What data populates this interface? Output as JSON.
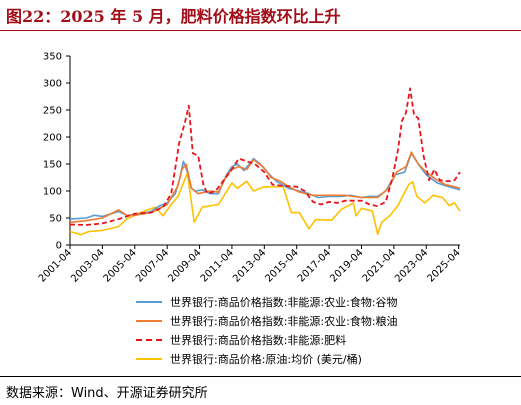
{
  "title": "图22：2025 年 5 月，肥料价格指数环比上升",
  "source": "数据来源：Wind、开源证券研究所",
  "chart_data": {
    "type": "line",
    "title": "图22：2025 年 5 月，肥料价格指数环比上升",
    "xlabel": "",
    "ylabel": "",
    "ylim": [
      0,
      350
    ],
    "yticks": [
      0,
      50,
      100,
      150,
      200,
      250,
      300,
      350
    ],
    "xticks": [
      "2001-04",
      "2003-04",
      "2005-04",
      "2007-04",
      "2009-04",
      "2011-04",
      "2013-04",
      "2015-04",
      "2017-04",
      "2019-04",
      "2021-04",
      "2023-04",
      "2025-04"
    ],
    "x_range": [
      "2001-04",
      "2025-05"
    ],
    "grid": false,
    "legend_position": "bottom",
    "series": [
      {
        "name": "世界银行:商品价格指数:非能源:农业:食物:谷物",
        "color": "#5b9bd5",
        "dash": "solid",
        "points": [
          [
            "2001-04",
            48
          ],
          [
            "2002-04",
            50
          ],
          [
            "2002-10",
            55
          ],
          [
            "2003-04",
            53
          ],
          [
            "2004-04",
            62
          ],
          [
            "2004-10",
            55
          ],
          [
            "2005-04",
            56
          ],
          [
            "2006-04",
            62
          ],
          [
            "2006-10",
            72
          ],
          [
            "2007-04",
            78
          ],
          [
            "2007-10",
            95
          ],
          [
            "2008-01",
            120
          ],
          [
            "2008-04",
            155
          ],
          [
            "2008-07",
            135
          ],
          [
            "2008-10",
            105
          ],
          [
            "2009-01",
            100
          ],
          [
            "2009-06",
            102
          ],
          [
            "2009-12",
            95
          ],
          [
            "2010-06",
            95
          ],
          [
            "2010-12",
            130
          ],
          [
            "2011-04",
            145
          ],
          [
            "2011-08",
            150
          ],
          [
            "2012-01",
            138
          ],
          [
            "2012-08",
            160
          ],
          [
            "2013-01",
            150
          ],
          [
            "2013-08",
            130
          ],
          [
            "2014-01",
            118
          ],
          [
            "2014-10",
            105
          ],
          [
            "2015-06",
            100
          ],
          [
            "2016-01",
            95
          ],
          [
            "2016-08",
            88
          ],
          [
            "2017-04",
            90
          ],
          [
            "2018-01",
            90
          ],
          [
            "2018-08",
            92
          ],
          [
            "2019-04",
            88
          ],
          [
            "2019-10",
            90
          ],
          [
            "2020-04",
            90
          ],
          [
            "2020-10",
            100
          ],
          [
            "2021-05",
            130
          ],
          [
            "2021-12",
            135
          ],
          [
            "2022-05",
            170
          ],
          [
            "2022-10",
            150
          ],
          [
            "2023-04",
            130
          ],
          [
            "2023-12",
            115
          ],
          [
            "2024-06",
            110
          ],
          [
            "2025-01",
            105
          ],
          [
            "2025-05",
            102
          ]
        ]
      },
      {
        "name": "世界银行:商品价格指数:非能源:农业:食物:粮油",
        "color": "#ed7d31",
        "dash": "solid",
        "points": [
          [
            "2001-04",
            42
          ],
          [
            "2002-04",
            45
          ],
          [
            "2003-04",
            50
          ],
          [
            "2004-04",
            65
          ],
          [
            "2004-10",
            55
          ],
          [
            "2005-04",
            55
          ],
          [
            "2006-04",
            60
          ],
          [
            "2007-04",
            75
          ],
          [
            "2007-12",
            110
          ],
          [
            "2008-03",
            140
          ],
          [
            "2008-06",
            150
          ],
          [
            "2008-10",
            105
          ],
          [
            "2009-03",
            95
          ],
          [
            "2009-12",
            100
          ],
          [
            "2010-06",
            98
          ],
          [
            "2010-12",
            128
          ],
          [
            "2011-04",
            140
          ],
          [
            "2011-09",
            145
          ],
          [
            "2012-03",
            140
          ],
          [
            "2012-08",
            158
          ],
          [
            "2013-03",
            145
          ],
          [
            "2013-09",
            125
          ],
          [
            "2014-04",
            118
          ],
          [
            "2014-10",
            108
          ],
          [
            "2015-06",
            98
          ],
          [
            "2016-04",
            92
          ],
          [
            "2017-04",
            92
          ],
          [
            "2018-04",
            92
          ],
          [
            "2019-04",
            88
          ],
          [
            "2020-04",
            88
          ],
          [
            "2020-12",
            105
          ],
          [
            "2021-06",
            135
          ],
          [
            "2022-01",
            145
          ],
          [
            "2022-05",
            172
          ],
          [
            "2022-10",
            150
          ],
          [
            "2023-04",
            135
          ],
          [
            "2023-12",
            120
          ],
          [
            "2024-06",
            112
          ],
          [
            "2025-01",
            108
          ],
          [
            "2025-05",
            105
          ]
        ]
      },
      {
        "name": "世界银行:商品价格指数:非能源:肥料",
        "color": "#e8141c",
        "dash": "dashed",
        "points": [
          [
            "2001-04",
            38
          ],
          [
            "2002-04",
            37
          ],
          [
            "2003-04",
            40
          ],
          [
            "2004-04",
            48
          ],
          [
            "2005-04",
            58
          ],
          [
            "2006-04",
            60
          ],
          [
            "2007-01",
            70
          ],
          [
            "2007-07",
            95
          ],
          [
            "2008-01",
            190
          ],
          [
            "2008-05",
            225
          ],
          [
            "2008-08",
            258
          ],
          [
            "2008-11",
            170
          ],
          [
            "2009-03",
            165
          ],
          [
            "2009-07",
            110
          ],
          [
            "2009-10",
            95
          ],
          [
            "2010-04",
            100
          ],
          [
            "2010-10",
            120
          ],
          [
            "2011-04",
            140
          ],
          [
            "2011-09",
            160
          ],
          [
            "2012-03",
            155
          ],
          [
            "2012-09",
            150
          ],
          [
            "2013-04",
            135
          ],
          [
            "2013-10",
            112
          ],
          [
            "2014-04",
            110
          ],
          [
            "2015-04",
            108
          ],
          [
            "2015-10",
            100
          ],
          [
            "2016-04",
            80
          ],
          [
            "2016-10",
            75
          ],
          [
            "2017-04",
            80
          ],
          [
            "2017-10",
            78
          ],
          [
            "2018-04",
            82
          ],
          [
            "2019-04",
            82
          ],
          [
            "2019-10",
            75
          ],
          [
            "2020-04",
            72
          ],
          [
            "2020-10",
            80
          ],
          [
            "2021-03",
            125
          ],
          [
            "2021-07",
            175
          ],
          [
            "2021-10",
            230
          ],
          [
            "2022-01",
            245
          ],
          [
            "2022-04",
            290
          ],
          [
            "2022-07",
            240
          ],
          [
            "2022-10",
            235
          ],
          [
            "2023-02",
            165
          ],
          [
            "2023-06",
            120
          ],
          [
            "2023-10",
            140
          ],
          [
            "2024-02",
            120
          ],
          [
            "2024-08",
            118
          ],
          [
            "2025-01",
            120
          ],
          [
            "2025-05",
            135
          ]
        ]
      },
      {
        "name": "世界银行:商品价格:原油:均价 (美元/桶)",
        "color": "#ffc000",
        "dash": "solid",
        "points": [
          [
            "2001-04",
            25
          ],
          [
            "2001-12",
            19
          ],
          [
            "2002-06",
            25
          ],
          [
            "2003-04",
            27
          ],
          [
            "2004-04",
            34
          ],
          [
            "2004-10",
            48
          ],
          [
            "2005-08",
            60
          ],
          [
            "2006-07",
            70
          ],
          [
            "2007-01",
            54
          ],
          [
            "2007-07",
            75
          ],
          [
            "2007-12",
            90
          ],
          [
            "2008-07",
            133
          ],
          [
            "2008-12",
            42
          ],
          [
            "2009-06",
            70
          ],
          [
            "2010-06",
            75
          ],
          [
            "2011-04",
            115
          ],
          [
            "2011-08",
            105
          ],
          [
            "2012-03",
            118
          ],
          [
            "2012-08",
            100
          ],
          [
            "2013-03",
            107
          ],
          [
            "2013-09",
            108
          ],
          [
            "2014-06",
            108
          ],
          [
            "2014-12",
            60
          ],
          [
            "2015-06",
            60
          ],
          [
            "2016-01",
            30
          ],
          [
            "2016-06",
            47
          ],
          [
            "2017-06",
            46
          ],
          [
            "2018-01",
            66
          ],
          [
            "2018-10",
            78
          ],
          [
            "2018-12",
            54
          ],
          [
            "2019-04",
            68
          ],
          [
            "2019-12",
            63
          ],
          [
            "2020-04",
            20
          ],
          [
            "2020-07",
            42
          ],
          [
            "2021-01",
            54
          ],
          [
            "2021-07",
            73
          ],
          [
            "2022-03",
            112
          ],
          [
            "2022-06",
            117
          ],
          [
            "2022-09",
            90
          ],
          [
            "2023-03",
            78
          ],
          [
            "2023-09",
            92
          ],
          [
            "2024-04",
            88
          ],
          [
            "2024-09",
            73
          ],
          [
            "2025-01",
            78
          ],
          [
            "2025-04",
            66
          ],
          [
            "2025-05",
            63
          ]
        ]
      }
    ]
  }
}
